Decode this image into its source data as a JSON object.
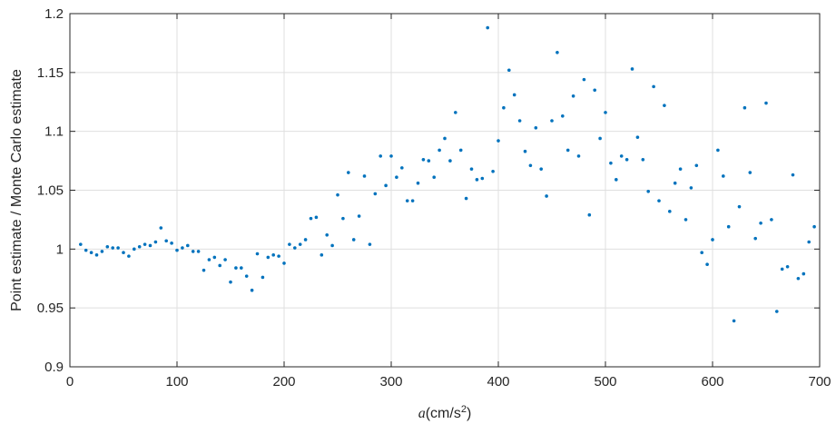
{
  "chart_data": {
    "type": "scatter",
    "xlabel_var": "a",
    "xlabel_unit": "(cm/s",
    "xlabel_exp": "2",
    "xlabel_close": ")",
    "ylabel": "Point estimate / Monte Carlo estimate",
    "xlim": [
      0,
      700
    ],
    "ylim": [
      0.9,
      1.2
    ],
    "grid": true,
    "xticks": [
      0,
      100,
      200,
      300,
      400,
      500,
      600,
      700
    ],
    "yticks": [
      0.9,
      0.95,
      1,
      1.05,
      1.1,
      1.15,
      1.2
    ],
    "xtick_labels": [
      "0",
      "100",
      "200",
      "300",
      "400",
      "500",
      "600",
      "700"
    ],
    "ytick_labels": [
      "0.9",
      "0.95",
      "1",
      "1.05",
      "1.1",
      "1.15",
      "1.2"
    ],
    "colors": {
      "marker": "#0072bd",
      "grid": "#dfdfdf",
      "axis": "#262626"
    },
    "series": [
      {
        "x": [
          10,
          15,
          20,
          25,
          30,
          35,
          40,
          45,
          50,
          55,
          60,
          65,
          70,
          75,
          80,
          85,
          90,
          95,
          100,
          105,
          110,
          115,
          120,
          125,
          130,
          135,
          140,
          145,
          150,
          155,
          160,
          165,
          170,
          175,
          180,
          185,
          190,
          195,
          200,
          205,
          210,
          215,
          220,
          225,
          230,
          235,
          240,
          245,
          250,
          255,
          260,
          265,
          270,
          275,
          280,
          285,
          290,
          295,
          300,
          305,
          310,
          315,
          320,
          325,
          330,
          335,
          340,
          345,
          350,
          355,
          360,
          365,
          370,
          375,
          380,
          385,
          390,
          395,
          400,
          405,
          410,
          415,
          420,
          425,
          430,
          435,
          440,
          445,
          450,
          455,
          460,
          465,
          470,
          475,
          480,
          485,
          490,
          495,
          500,
          505,
          510,
          515,
          520,
          525,
          530,
          535,
          540,
          545,
          550,
          555,
          560,
          565,
          570,
          575,
          580,
          585,
          590,
          595,
          600,
          605,
          610,
          615,
          620,
          625,
          630,
          635,
          640,
          645,
          650,
          655,
          660,
          665,
          670,
          675,
          680,
          685,
          690,
          695
        ],
        "y": [
          1.004,
          0.999,
          0.997,
          0.995,
          0.998,
          1.002,
          1.001,
          1.001,
          0.997,
          0.994,
          1.0,
          1.002,
          1.004,
          1.003,
          1.006,
          1.018,
          1.007,
          1.005,
          0.999,
          1.001,
          1.003,
          0.998,
          0.998,
          0.982,
          0.991,
          0.993,
          0.986,
          0.991,
          0.972,
          0.984,
          0.984,
          0.977,
          0.965,
          0.996,
          0.976,
          0.993,
          0.995,
          0.994,
          0.988,
          1.004,
          1.001,
          1.004,
          1.008,
          1.026,
          1.027,
          0.995,
          1.012,
          1.003,
          1.046,
          1.026,
          1.065,
          1.008,
          1.028,
          1.062,
          1.004,
          1.047,
          1.079,
          1.054,
          1.079,
          1.061,
          1.069,
          1.041,
          1.041,
          1.056,
          1.076,
          1.075,
          1.061,
          1.084,
          1.094,
          1.075,
          1.116,
          1.084,
          1.043,
          1.068,
          1.059,
          1.06,
          1.188,
          1.066,
          1.092,
          1.12,
          1.152,
          1.131,
          1.109,
          1.083,
          1.071,
          1.103,
          1.068,
          1.045,
          1.109,
          1.167,
          1.113,
          1.084,
          1.13,
          1.079,
          1.144,
          1.029,
          1.135,
          1.094,
          1.116,
          1.073,
          1.059,
          1.079,
          1.076,
          1.153,
          1.095,
          1.076,
          1.049,
          1.138,
          1.041,
          1.122,
          1.032,
          1.056,
          1.068,
          1.025,
          1.052,
          1.071,
          0.997,
          0.987,
          1.008,
          1.084,
          1.062,
          1.019,
          0.939,
          1.036,
          1.12,
          1.065,
          1.009,
          1.022,
          1.124,
          1.025,
          0.947,
          0.983,
          0.985,
          1.063,
          0.975,
          0.979,
          1.006,
          1.019
        ]
      }
    ]
  }
}
